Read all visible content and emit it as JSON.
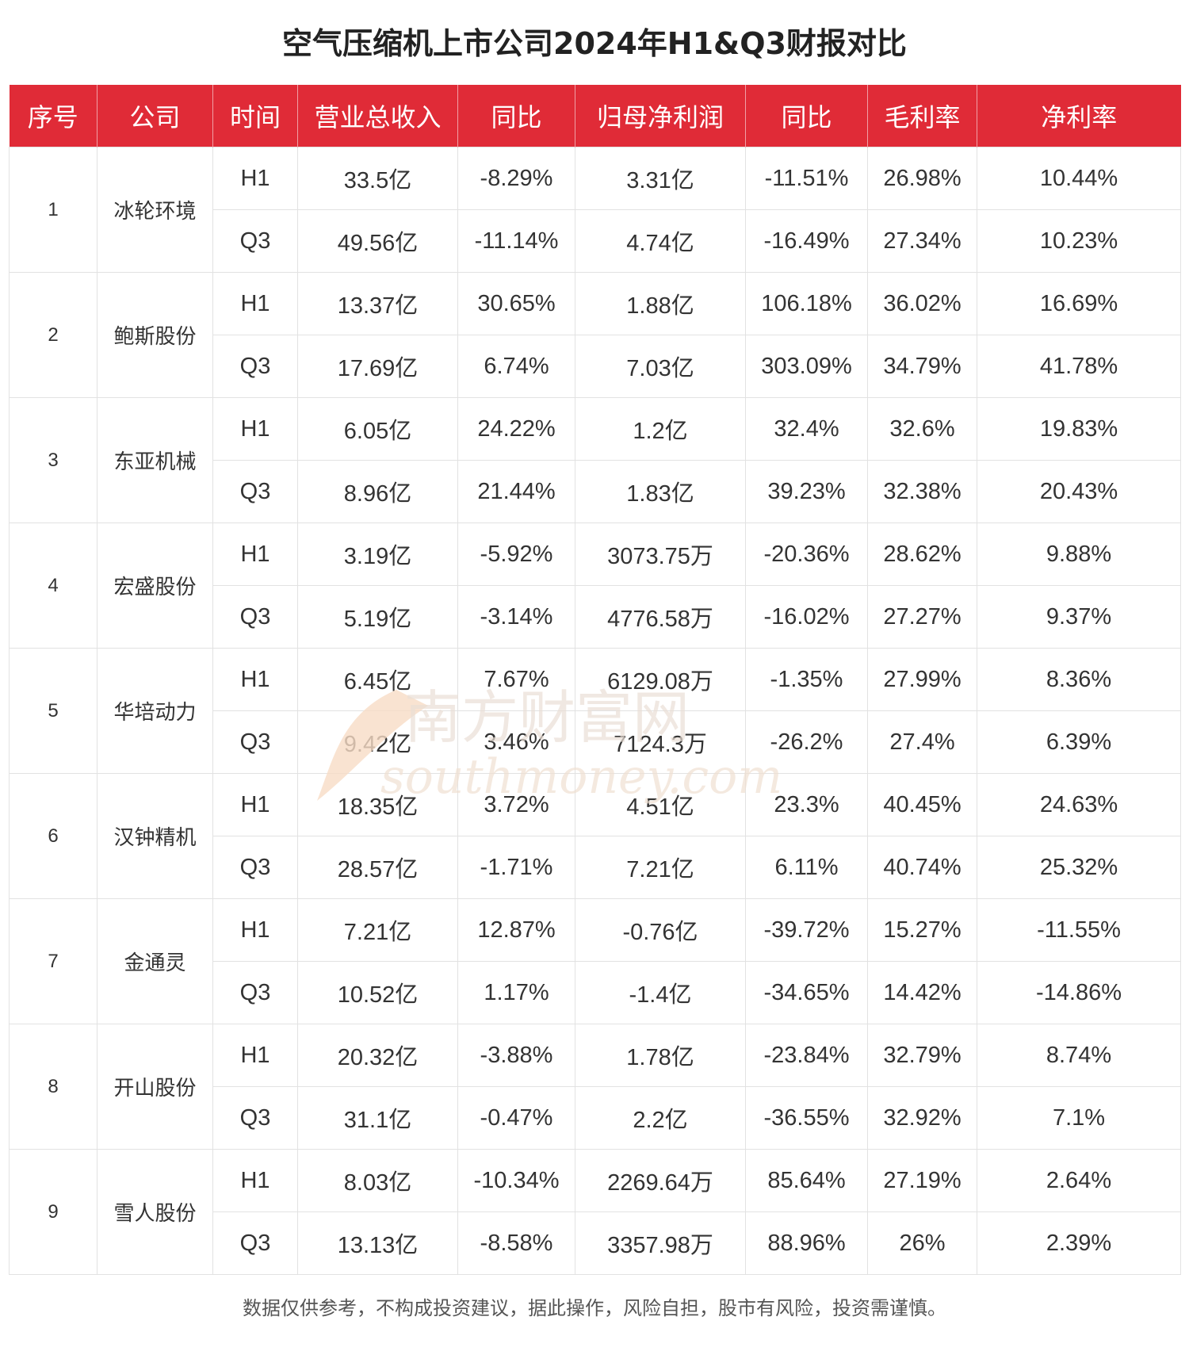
{
  "title": "空气压缩机上市公司2024年H1&Q3财报对比",
  "table": {
    "headers": [
      "序号",
      "公司",
      "时间",
      "营业总收入",
      "同比",
      "归母净利润",
      "同比",
      "毛利率",
      "净利率"
    ],
    "companies": [
      {
        "index": "1",
        "name": "冰轮环境",
        "rows": [
          [
            "H1",
            "33.5亿",
            "-8.29%",
            "3.31亿",
            "-11.51%",
            "26.98%",
            "10.44%"
          ],
          [
            "Q3",
            "49.56亿",
            "-11.14%",
            "4.74亿",
            "-16.49%",
            "27.34%",
            "10.23%"
          ]
        ]
      },
      {
        "index": "2",
        "name": "鲍斯股份",
        "rows": [
          [
            "H1",
            "13.37亿",
            "30.65%",
            "1.88亿",
            "106.18%",
            "36.02%",
            "16.69%"
          ],
          [
            "Q3",
            "17.69亿",
            "6.74%",
            "7.03亿",
            "303.09%",
            "34.79%",
            "41.78%"
          ]
        ]
      },
      {
        "index": "3",
        "name": "东亚机械",
        "rows": [
          [
            "H1",
            "6.05亿",
            "24.22%",
            "1.2亿",
            "32.4%",
            "32.6%",
            "19.83%"
          ],
          [
            "Q3",
            "8.96亿",
            "21.44%",
            "1.83亿",
            "39.23%",
            "32.38%",
            "20.43%"
          ]
        ]
      },
      {
        "index": "4",
        "name": "宏盛股份",
        "rows": [
          [
            "H1",
            "3.19亿",
            "-5.92%",
            "3073.75万",
            "-20.36%",
            "28.62%",
            "9.88%"
          ],
          [
            "Q3",
            "5.19亿",
            "-3.14%",
            "4776.58万",
            "-16.02%",
            "27.27%",
            "9.37%"
          ]
        ]
      },
      {
        "index": "5",
        "name": "华培动力",
        "rows": [
          [
            "H1",
            "6.45亿",
            "7.67%",
            "6129.08万",
            "-1.35%",
            "27.99%",
            "8.36%"
          ],
          [
            "Q3",
            "9.42亿",
            "3.46%",
            "7124.3万",
            "-26.2%",
            "27.4%",
            "6.39%"
          ]
        ]
      },
      {
        "index": "6",
        "name": "汉钟精机",
        "rows": [
          [
            "H1",
            "18.35亿",
            "3.72%",
            "4.51亿",
            "23.3%",
            "40.45%",
            "24.63%"
          ],
          [
            "Q3",
            "28.57亿",
            "-1.71%",
            "7.21亿",
            "6.11%",
            "40.74%",
            "25.32%"
          ]
        ]
      },
      {
        "index": "7",
        "name": "金通灵",
        "rows": [
          [
            "H1",
            "7.21亿",
            "12.87%",
            "-0.76亿",
            "-39.72%",
            "15.27%",
            "-11.55%"
          ],
          [
            "Q3",
            "10.52亿",
            "1.17%",
            "-1.4亿",
            "-34.65%",
            "14.42%",
            "-14.86%"
          ]
        ]
      },
      {
        "index": "8",
        "name": "开山股份",
        "rows": [
          [
            "H1",
            "20.32亿",
            "-3.88%",
            "1.78亿",
            "-23.84%",
            "32.79%",
            "8.74%"
          ],
          [
            "Q3",
            "31.1亿",
            "-0.47%",
            "2.2亿",
            "-36.55%",
            "32.92%",
            "7.1%"
          ]
        ]
      },
      {
        "index": "9",
        "name": "雪人股份",
        "rows": [
          [
            "H1",
            "8.03亿",
            "-10.34%",
            "2269.64万",
            "85.64%",
            "27.19%",
            "2.64%"
          ],
          [
            "Q3",
            "13.13亿",
            "-8.58%",
            "3357.98万",
            "88.96%",
            "26%",
            "2.39%"
          ]
        ]
      }
    ]
  },
  "watermark": {
    "cn": "南方财富网",
    "en": "southmoney.com"
  },
  "footer": "数据仅供参考，不构成投资建议，据此操作，风险自担，股市有风险，投资需谨慎。",
  "colors": {
    "header_bg": "#e02b37",
    "header_text": "#ffffff",
    "border": "#e2e2e2",
    "watermark": "#f3d9c6"
  }
}
